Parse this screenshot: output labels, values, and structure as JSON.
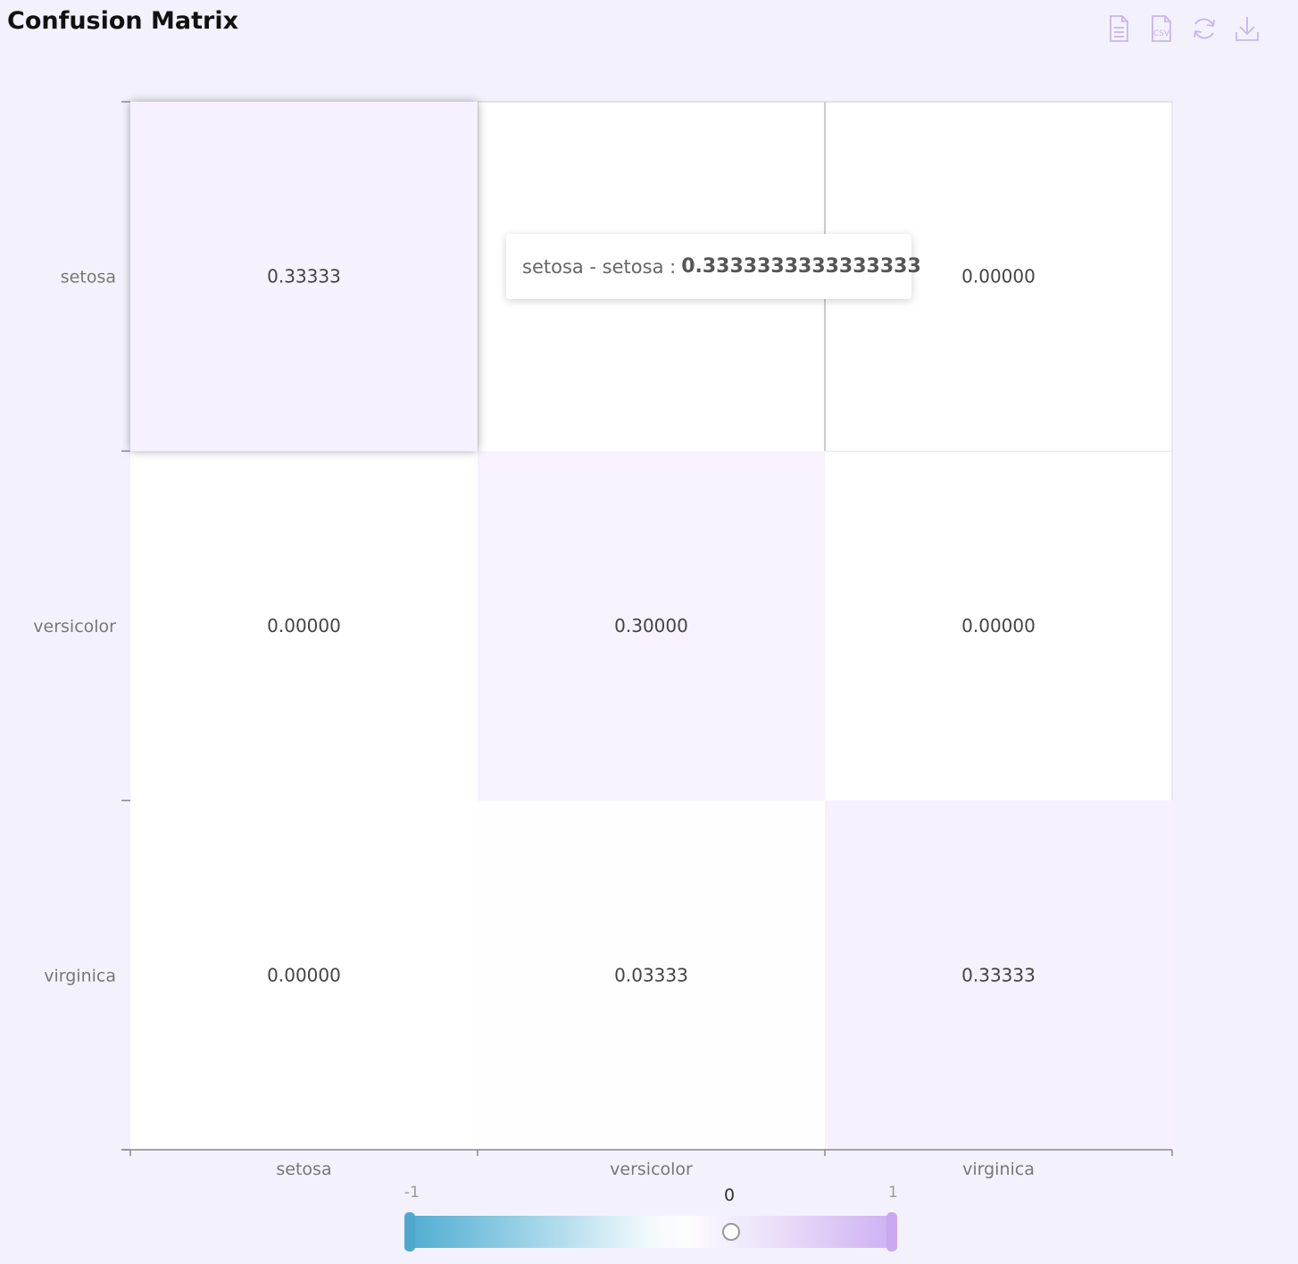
{
  "title": "Confusion Matrix",
  "toolbar": {
    "icons": [
      "document-icon",
      "csv-icon",
      "refresh-icon",
      "download-icon"
    ],
    "csv_label": "CSV",
    "icon_color": "#c9b4f0"
  },
  "tooltip": {
    "label": "setosa - setosa :",
    "value": "0.3333333333333333"
  },
  "visual_map": {
    "min_label": "-1",
    "max_label": "1",
    "current": "0",
    "min_color": "#52aed2",
    "max_color": "#cfb2f3"
  },
  "chart_data": {
    "type": "heatmap",
    "title": "Confusion Matrix",
    "x_categories": [
      "setosa",
      "versicolor",
      "virginica"
    ],
    "y_categories": [
      "setosa",
      "versicolor",
      "virginica"
    ],
    "values": [
      [
        0.3333333333333333,
        0.0,
        0.0
      ],
      [
        0.0,
        0.3,
        0.0
      ],
      [
        0.0,
        0.03333333333333333,
        0.3333333333333333
      ]
    ],
    "labels": [
      [
        "0.33333",
        "",
        "0.00000"
      ],
      [
        "0.00000",
        "0.30000",
        "0.00000"
      ],
      [
        "0.00000",
        "0.03333",
        "0.33333"
      ]
    ],
    "value_range": [
      -1,
      1
    ],
    "highlight": [
      0,
      0
    ]
  }
}
